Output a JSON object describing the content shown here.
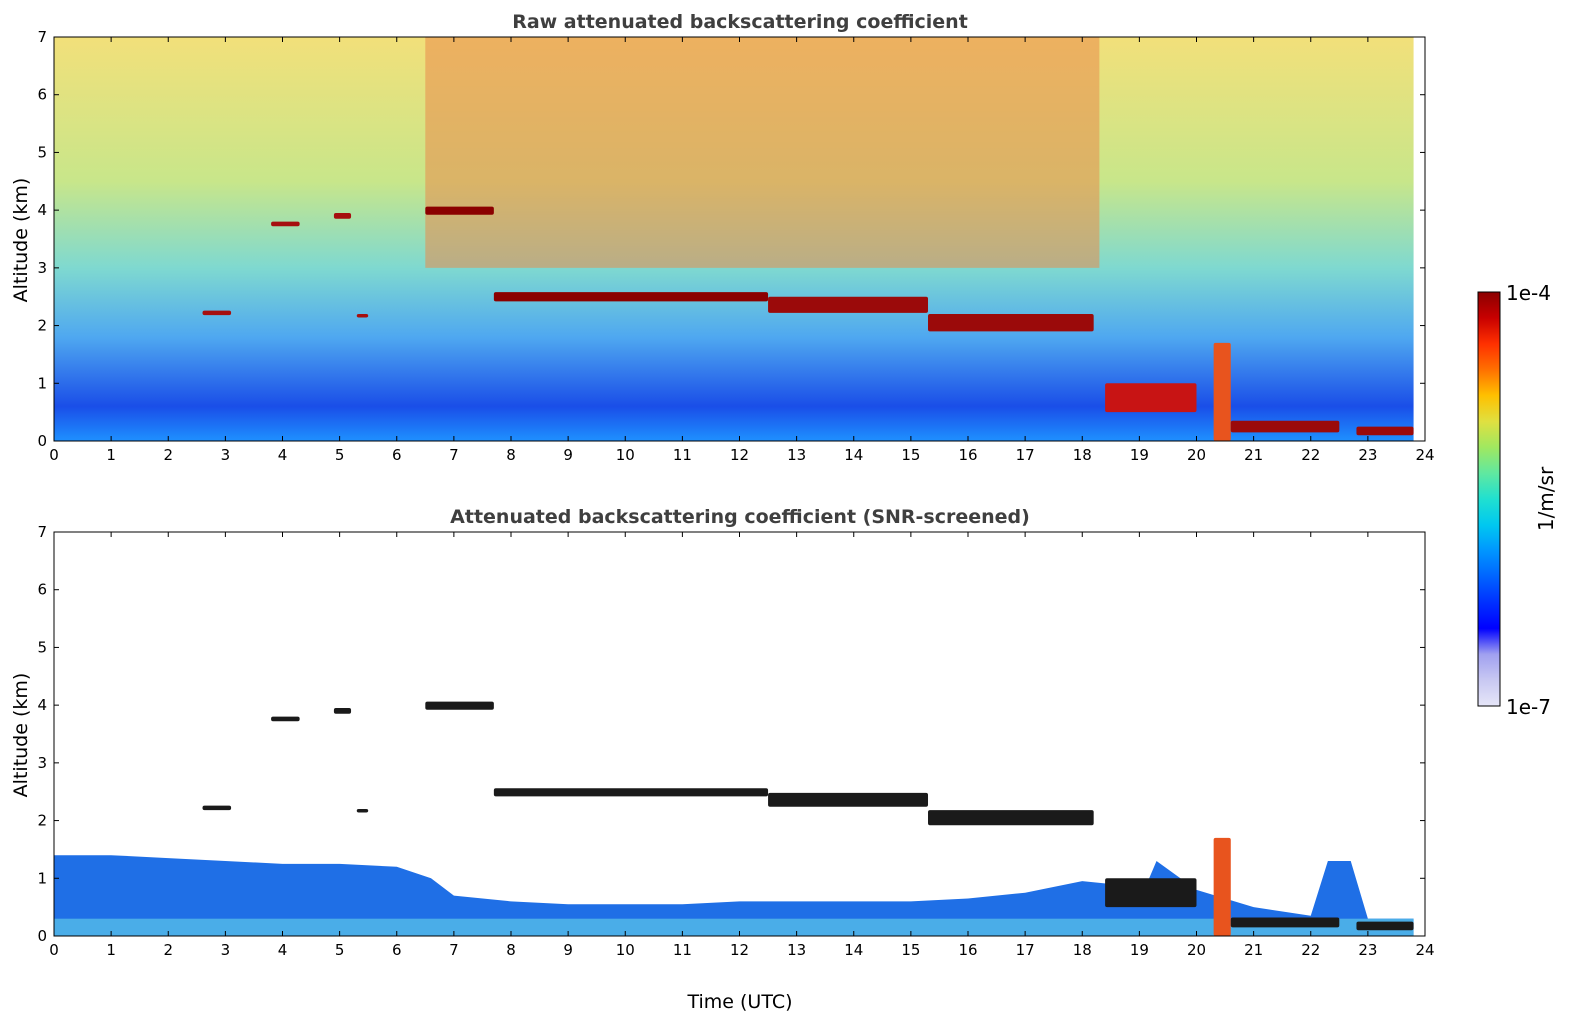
{
  "chart_data": [
    {
      "type": "heatmap",
      "title": "Raw attenuated backscattering coefficient",
      "xlabel": "",
      "ylabel": "Altitude (km)",
      "xlim": [
        0,
        24
      ],
      "ylim": [
        0,
        7
      ],
      "xticks": [
        "0",
        "1",
        "2",
        "3",
        "4",
        "5",
        "6",
        "7",
        "8",
        "9",
        "10",
        "11",
        "12",
        "13",
        "14",
        "15",
        "16",
        "17",
        "18",
        "19",
        "20",
        "21",
        "22",
        "23",
        "24"
      ],
      "yticks": [
        "0",
        "1",
        "2",
        "3",
        "4",
        "5",
        "6",
        "7"
      ],
      "grid": false,
      "background_gradient": [
        {
          "altitude_km": 0,
          "color": "#1e90ff"
        },
        {
          "altitude_km": 0.6,
          "color": "#1a4ee8"
        },
        {
          "altitude_km": 1.8,
          "color": "#4fa8f0"
        },
        {
          "altitude_km": 3.0,
          "color": "#7fd9d0"
        },
        {
          "altitude_km": 4.5,
          "color": "#c8e68a"
        },
        {
          "altitude_km": 7.0,
          "color": "#f2e07a"
        }
      ],
      "noisy_high_signal_region": {
        "x": [
          6.5,
          18.3
        ],
        "y": [
          3.0,
          7.0
        ],
        "color": "#e98a4a"
      },
      "layers": [
        {
          "x": [
            3.8,
            4.3
          ],
          "y": [
            3.72,
            3.8
          ],
          "color": "#a60f0f"
        },
        {
          "x": [
            4.9,
            5.2
          ],
          "y": [
            3.85,
            3.95
          ],
          "color": "#a60f0f"
        },
        {
          "x": [
            6.5,
            7.7
          ],
          "y": [
            3.92,
            4.06
          ],
          "color": "#8b0000"
        },
        {
          "x": [
            2.6,
            3.1
          ],
          "y": [
            2.18,
            2.26
          ],
          "color": "#a60f0f"
        },
        {
          "x": [
            5.3,
            5.5
          ],
          "y": [
            2.14,
            2.2
          ],
          "color": "#a60f0f"
        },
        {
          "x": [
            7.7,
            12.5
          ],
          "y": [
            2.42,
            2.58
          ],
          "color": "#8b0000"
        },
        {
          "x": [
            12.5,
            15.3
          ],
          "y": [
            2.22,
            2.5
          ],
          "color": "#9b0a0a"
        },
        {
          "x": [
            15.3,
            18.2
          ],
          "y": [
            1.9,
            2.2
          ],
          "color": "#9b0a0a"
        },
        {
          "x": [
            18.4,
            20.0
          ],
          "y": [
            0.5,
            1.0
          ],
          "color": "#c81414"
        },
        {
          "x": [
            20.3,
            20.6
          ],
          "y": [
            0.0,
            1.7
          ],
          "color": "#e8541e"
        },
        {
          "x": [
            20.6,
            22.5
          ],
          "y": [
            0.15,
            0.35
          ],
          "color": "#9b0a0a"
        },
        {
          "x": [
            22.8,
            23.8
          ],
          "y": [
            0.1,
            0.25
          ],
          "color": "#9b0a0a"
        }
      ]
    },
    {
      "type": "heatmap",
      "title": "Attenuated backscattering coefficient (SNR-screened)",
      "xlabel": "Time (UTC)",
      "ylabel": "Altitude (km)",
      "xlim": [
        0,
        24
      ],
      "ylim": [
        0,
        7
      ],
      "xticks": [
        "0",
        "1",
        "2",
        "3",
        "4",
        "5",
        "6",
        "7",
        "8",
        "9",
        "10",
        "11",
        "12",
        "13",
        "14",
        "15",
        "16",
        "17",
        "18",
        "19",
        "20",
        "21",
        "22",
        "23",
        "24"
      ],
      "yticks": [
        "0",
        "1",
        "2",
        "3",
        "4",
        "5",
        "6",
        "7"
      ],
      "grid": false,
      "boundary_layer": [
        {
          "x": 0,
          "top_km": 1.4
        },
        {
          "x": 1,
          "top_km": 1.4
        },
        {
          "x": 2,
          "top_km": 1.35
        },
        {
          "x": 3,
          "top_km": 1.3
        },
        {
          "x": 4,
          "top_km": 1.25
        },
        {
          "x": 5,
          "top_km": 1.25
        },
        {
          "x": 6,
          "top_km": 1.2
        },
        {
          "x": 6.6,
          "top_km": 1.0
        },
        {
          "x": 7,
          "top_km": 0.7
        },
        {
          "x": 8,
          "top_km": 0.6
        },
        {
          "x": 9,
          "top_km": 0.55
        },
        {
          "x": 10,
          "top_km": 0.55
        },
        {
          "x": 11,
          "top_km": 0.55
        },
        {
          "x": 12,
          "top_km": 0.6
        },
        {
          "x": 13,
          "top_km": 0.6
        },
        {
          "x": 14,
          "top_km": 0.6
        },
        {
          "x": 15,
          "top_km": 0.6
        },
        {
          "x": 16,
          "top_km": 0.65
        },
        {
          "x": 17,
          "top_km": 0.75
        },
        {
          "x": 18,
          "top_km": 0.95
        },
        {
          "x": 18.5,
          "top_km": 0.9
        },
        {
          "x": 19,
          "top_km": 0.6
        },
        {
          "x": 19.3,
          "top_km": 1.3
        },
        {
          "x": 20,
          "top_km": 0.8
        },
        {
          "x": 21,
          "top_km": 0.5
        },
        {
          "x": 22,
          "top_km": 0.35
        },
        {
          "x": 22.3,
          "top_km": 1.3
        },
        {
          "x": 22.7,
          "top_km": 1.3
        },
        {
          "x": 23,
          "top_km": 0.3
        },
        {
          "x": 23.8,
          "top_km": 0.3
        }
      ],
      "boundary_layer_color": "#1f6fe6",
      "boundary_layer_base_color": "#5cc8e8",
      "layers": [
        {
          "x": [
            3.8,
            4.3
          ],
          "y": [
            3.72,
            3.8
          ],
          "color": "#1a1a1a"
        },
        {
          "x": [
            4.9,
            5.2
          ],
          "y": [
            3.85,
            3.95
          ],
          "color": "#1a1a1a"
        },
        {
          "x": [
            6.5,
            7.7
          ],
          "y": [
            3.92,
            4.06
          ],
          "color": "#1a1a1a"
        },
        {
          "x": [
            2.6,
            3.1
          ],
          "y": [
            2.18,
            2.26
          ],
          "color": "#1a1a1a"
        },
        {
          "x": [
            5.3,
            5.5
          ],
          "y": [
            2.14,
            2.2
          ],
          "color": "#1a1a1a"
        },
        {
          "x": [
            7.7,
            12.5
          ],
          "y": [
            2.42,
            2.56
          ],
          "color": "#1a1a1a"
        },
        {
          "x": [
            12.5,
            15.3
          ],
          "y": [
            2.24,
            2.48
          ],
          "color": "#1a1a1a"
        },
        {
          "x": [
            15.3,
            18.2
          ],
          "y": [
            1.92,
            2.18
          ],
          "color": "#1a1a1a"
        },
        {
          "x": [
            18.4,
            20.0
          ],
          "y": [
            0.5,
            1.0
          ],
          "color": "#1a1a1a"
        },
        {
          "x": [
            20.3,
            20.6
          ],
          "y": [
            0.0,
            1.7
          ],
          "color": "#e8541e"
        },
        {
          "x": [
            20.6,
            22.5
          ],
          "y": [
            0.15,
            0.32
          ],
          "color": "#1a1a1a"
        },
        {
          "x": [
            22.8,
            23.8
          ],
          "y": [
            0.1,
            0.25
          ],
          "color": "#1a1a1a"
        }
      ]
    }
  ],
  "colorbar": {
    "top_label": "1e-4",
    "bottom_label": "1e-7",
    "unit_label": "1/m/sr",
    "colors": [
      "#e6e6f8",
      "#c8c8f2",
      "#a0a0f0",
      "#0000ff",
      "#0030ff",
      "#0064ff",
      "#0096ff",
      "#00c8f0",
      "#20e0d0",
      "#60e8a0",
      "#a0e860",
      "#e0e040",
      "#ffc000",
      "#ff7000",
      "#ff3000",
      "#c80000",
      "#8b0000"
    ]
  }
}
